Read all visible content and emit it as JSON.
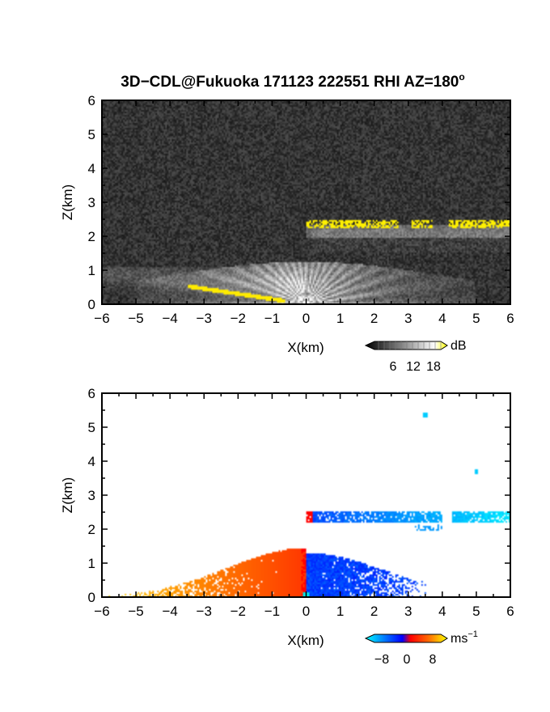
{
  "chart_data": [
    {
      "type": "heatmap",
      "title": "3D−CDL@Fukuoka 171123 222551 RHI AZ=180",
      "title_superscript": "o",
      "xlabel": "X(km)",
      "ylabel": "Z(km)",
      "xlim": [
        -6,
        6
      ],
      "ylim": [
        0,
        6
      ],
      "xticks": [
        "−6",
        "−5",
        "−4",
        "−3",
        "−2",
        "−1",
        "0",
        "1",
        "2",
        "3",
        "4",
        "5",
        "6"
      ],
      "yticks": [
        "0",
        "1",
        "2",
        "3",
        "4",
        "5",
        "6"
      ],
      "variable": "SNR",
      "colorbar": {
        "unit": "dB",
        "ticks": [
          "6",
          "12",
          "18"
        ],
        "range": [
          0,
          21
        ],
        "colors": [
          "#000000",
          "#ffffff",
          "#ffff00"
        ]
      },
      "features": {
        "cloud_layer_base_km": 2.3,
        "cloud_layer_x_range_km": [
          0,
          6
        ],
        "surface_echo_x_range_km": [
          -3.5,
          0
        ],
        "beam_fan_max_height_km": 1.2
      }
    },
    {
      "type": "heatmap",
      "xlabel": "X(km)",
      "ylabel": "Z(km)",
      "xlim": [
        -6,
        6
      ],
      "ylim": [
        0,
        6
      ],
      "xticks": [
        "−6",
        "−5",
        "−4",
        "−3",
        "−2",
        "−1",
        "0",
        "1",
        "2",
        "3",
        "4",
        "5",
        "6"
      ],
      "yticks": [
        "0",
        "1",
        "2",
        "3",
        "4",
        "5",
        "6"
      ],
      "variable": "Doppler velocity",
      "colorbar": {
        "unit": "ms",
        "unit_superscript": "−1",
        "ticks": [
          "−8",
          "0",
          "8"
        ],
        "range": [
          -10,
          10
        ],
        "colors": [
          "#00ffff",
          "#0050ff",
          "#0000ff",
          "#ff0000",
          "#ff6000",
          "#ffff00"
        ]
      },
      "features": {
        "negative_region_x_km": [
          -5.8,
          0
        ],
        "positive_region_x_km": [
          0,
          4
        ],
        "cloud_layer_base_km": 2.35,
        "cloud_layer_x_range_km": [
          0,
          6
        ],
        "isolated_echoes": [
          {
            "x": 3.5,
            "z": 5.35
          },
          {
            "x": 5.0,
            "z": 3.7
          }
        ]
      }
    }
  ]
}
